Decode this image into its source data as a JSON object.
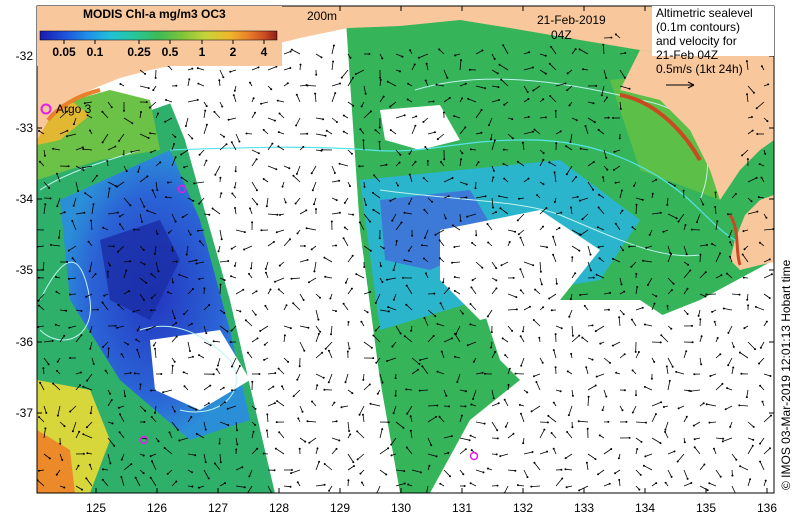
{
  "colorbar": {
    "title": "MODIS Chl-a mg/m3 OC3",
    "ticks": [
      "0.05",
      "0.1",
      "0.25",
      "0.5",
      "1",
      "2",
      "4"
    ],
    "colors": [
      "#1b1bb0",
      "#1d4fd8",
      "#1f8fe8",
      "#22c1d6",
      "#27c79a",
      "#3dbb55",
      "#7fc43a",
      "#c6d33a",
      "#f0b72c",
      "#e9802a",
      "#c94a22",
      "#8c1c18"
    ]
  },
  "contour_label": "200m",
  "date": {
    "line1": "21-Feb-2019",
    "line2": "04Z"
  },
  "legend": {
    "lines": [
      "Altimetric sealevel",
      "(0.1m contours)",
      "and velocity for",
      "21-Feb 04Z"
    ],
    "scale_text": "0.5m/s (1kt 24h)"
  },
  "argo": {
    "label": "Argo 3"
  },
  "axes": {
    "x_ticks": [
      "125",
      "126",
      "127",
      "128",
      "129",
      "130",
      "131",
      "132",
      "133",
      "134",
      "135",
      "136"
    ],
    "y_ticks": [
      "-32",
      "-33",
      "-34",
      "-35",
      "-36",
      "-37"
    ]
  },
  "credit": "© IMOS 03-Mar-2019 12:01:13 Hobart time",
  "colors": {
    "land": "#f8c79c",
    "ocean_green": "#33b05a",
    "ocean_cyan": "#28b6c8",
    "ocean_blue": "#2b58cf",
    "contour": "#bdf3ef",
    "shelf_contour": "#58e3e9",
    "argo_marker": "#e51ee5"
  }
}
